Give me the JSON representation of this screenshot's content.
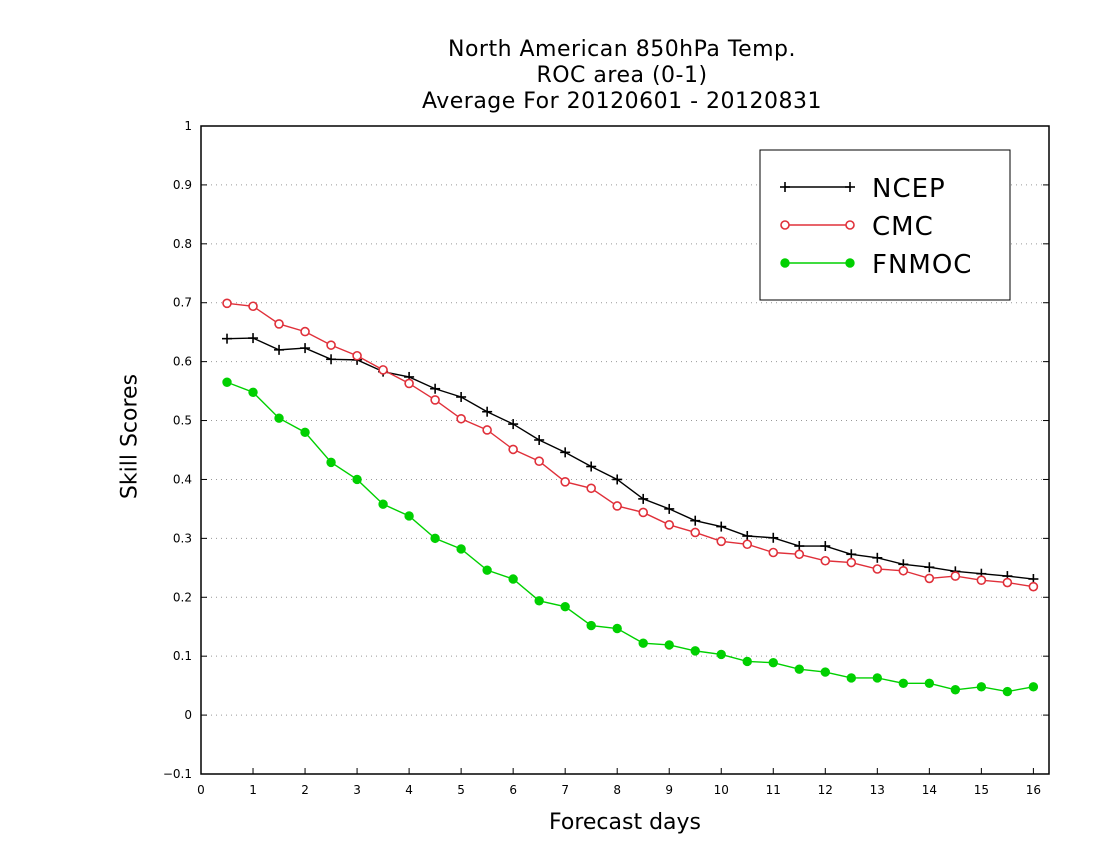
{
  "chart_data": {
    "type": "line",
    "title_lines": [
      "North American 850hPa Temp.",
      "ROC area (0-1)",
      "Average For 20120601 - 20120831"
    ],
    "xlabel": "Forecast days",
    "ylabel": "Skill Scores",
    "xlim": [
      0,
      16.3
    ],
    "ylim": [
      -0.1,
      1
    ],
    "xticks": [
      0,
      1,
      2,
      3,
      4,
      5,
      6,
      7,
      8,
      9,
      10,
      11,
      12,
      13,
      14,
      15,
      16
    ],
    "yticks": [
      -0.1,
      0,
      0.1,
      0.2,
      0.3,
      0.4,
      0.5,
      0.6,
      0.7,
      0.8,
      0.9,
      1
    ],
    "ytick_labels": [
      "−0.1",
      "0",
      "0.1",
      "0.2",
      "0.3",
      "0.4",
      "0.5",
      "0.6",
      "0.7",
      "0.8",
      "0.9",
      "1"
    ],
    "grid": true,
    "legend_position": "top-right",
    "x": [
      0.5,
      1.0,
      1.5,
      2.0,
      2.5,
      3.0,
      3.5,
      4.0,
      4.5,
      5.0,
      5.5,
      6.0,
      6.5,
      7.0,
      7.5,
      8.0,
      8.5,
      9.0,
      9.5,
      10.0,
      10.5,
      11.0,
      11.5,
      12.0,
      12.5,
      13.0,
      13.5,
      14.0,
      14.5,
      15.0,
      15.5,
      16.0
    ],
    "series": [
      {
        "name": "NCEP",
        "color": "#000000",
        "marker": "plus",
        "values": [
          0.639,
          0.64,
          0.62,
          0.623,
          0.604,
          0.603,
          0.583,
          0.574,
          0.554,
          0.54,
          0.515,
          0.494,
          0.467,
          0.446,
          0.422,
          0.4,
          0.367,
          0.35,
          0.33,
          0.32,
          0.304,
          0.301,
          0.287,
          0.287,
          0.273,
          0.267,
          0.256,
          0.251,
          0.244,
          0.24,
          0.236,
          0.231
        ]
      },
      {
        "name": "CMC",
        "color": "#e0303a",
        "marker": "open-circle",
        "values": [
          0.699,
          0.694,
          0.664,
          0.651,
          0.628,
          0.61,
          0.586,
          0.563,
          0.535,
          0.503,
          0.484,
          0.451,
          0.431,
          0.396,
          0.385,
          0.355,
          0.344,
          0.323,
          0.31,
          0.295,
          0.29,
          0.276,
          0.273,
          0.262,
          0.259,
          0.248,
          0.245,
          0.232,
          0.236,
          0.229,
          0.225,
          0.218
        ]
      },
      {
        "name": "FNMOC",
        "color": "#00d000",
        "marker": "filled-circle",
        "values": [
          0.565,
          0.548,
          0.504,
          0.48,
          0.429,
          0.4,
          0.358,
          0.338,
          0.3,
          0.282,
          0.246,
          0.231,
          0.194,
          0.184,
          0.152,
          0.147,
          0.122,
          0.119,
          0.109,
          0.103,
          0.091,
          0.089,
          0.078,
          0.073,
          0.063,
          0.063,
          0.054,
          0.054,
          0.043,
          0.048,
          0.04,
          0.048
        ]
      }
    ]
  }
}
